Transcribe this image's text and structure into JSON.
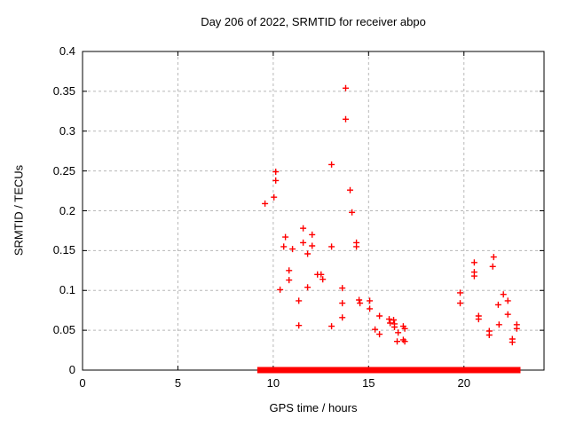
{
  "chart_data": {
    "type": "scatter",
    "title": "Day 206 of 2022, SRMTID for receiver abpo",
    "xlabel": "GPS time / hours",
    "ylabel": "SRMTID / TECUs",
    "xlim": [
      0,
      24.2
    ],
    "ylim": [
      0,
      0.4
    ],
    "grid": true,
    "legend": "none",
    "marker": "plus",
    "colors": {
      "marker": "#ff0000",
      "grid": "#b8b8b8",
      "axis": "#000000",
      "text": "#000000",
      "background": "#ffffff"
    },
    "xticks": [
      {
        "pos": 0,
        "label": "0"
      },
      {
        "pos": 5,
        "label": "5"
      },
      {
        "pos": 10,
        "label": "10"
      },
      {
        "pos": 15,
        "label": "15"
      },
      {
        "pos": 20,
        "label": "20"
      }
    ],
    "yticks": [
      {
        "pos": 0,
        "label": "0"
      },
      {
        "pos": 0.05,
        "label": "0.05"
      },
      {
        "pos": 0.1,
        "label": "0.1"
      },
      {
        "pos": 0.15,
        "label": "0.15"
      },
      {
        "pos": 0.2,
        "label": "0.2"
      },
      {
        "pos": 0.25,
        "label": "0.25"
      },
      {
        "pos": 0.3,
        "label": "0.3"
      },
      {
        "pos": 0.35,
        "label": "0.35"
      },
      {
        "pos": 0.4,
        "label": "0.4"
      }
    ],
    "series": [
      {
        "name": "srmtid-points",
        "points": [
          [
            9.57,
            0.209
          ],
          [
            10.04,
            0.217
          ],
          [
            10.13,
            0.249
          ],
          [
            10.13,
            0.238
          ],
          [
            10.36,
            0.101
          ],
          [
            10.55,
            0.155
          ],
          [
            10.64,
            0.167
          ],
          [
            10.83,
            0.125
          ],
          [
            10.83,
            0.113
          ],
          [
            11.01,
            0.152
          ],
          [
            11.34,
            0.087
          ],
          [
            11.34,
            0.056
          ],
          [
            11.57,
            0.178
          ],
          [
            11.57,
            0.16
          ],
          [
            11.8,
            0.146
          ],
          [
            11.8,
            0.104
          ],
          [
            12.04,
            0.17
          ],
          [
            12.04,
            0.156
          ],
          [
            12.32,
            0.12
          ],
          [
            12.51,
            0.12
          ],
          [
            12.6,
            0.114
          ],
          [
            13.06,
            0.258
          ],
          [
            13.06,
            0.155
          ],
          [
            13.06,
            0.055
          ],
          [
            13.62,
            0.103
          ],
          [
            13.62,
            0.084
          ],
          [
            13.62,
            0.066
          ],
          [
            13.8,
            0.354
          ],
          [
            13.8,
            0.315
          ],
          [
            14.03,
            0.226
          ],
          [
            14.13,
            0.198
          ],
          [
            14.36,
            0.16
          ],
          [
            14.36,
            0.155
          ],
          [
            14.5,
            0.088
          ],
          [
            14.55,
            0.084
          ],
          [
            15.06,
            0.087
          ],
          [
            15.06,
            0.077
          ],
          [
            15.34,
            0.051
          ],
          [
            15.57,
            0.068
          ],
          [
            15.57,
            0.045
          ],
          [
            16.08,
            0.064
          ],
          [
            16.13,
            0.059
          ],
          [
            16.31,
            0.063
          ],
          [
            16.36,
            0.058
          ],
          [
            16.36,
            0.054
          ],
          [
            16.5,
            0.036
          ],
          [
            16.55,
            0.047
          ],
          [
            16.82,
            0.055
          ],
          [
            16.82,
            0.038
          ],
          [
            16.9,
            0.052
          ],
          [
            16.9,
            0.036
          ],
          [
            19.8,
            0.097
          ],
          [
            19.8,
            0.084
          ],
          [
            20.54,
            0.135
          ],
          [
            20.54,
            0.123
          ],
          [
            20.54,
            0.118
          ],
          [
            20.77,
            0.068
          ],
          [
            20.77,
            0.064
          ],
          [
            21.33,
            0.049
          ],
          [
            21.33,
            0.044
          ],
          [
            21.51,
            0.13
          ],
          [
            21.56,
            0.142
          ],
          [
            21.8,
            0.082
          ],
          [
            21.84,
            0.057
          ],
          [
            22.07,
            0.095
          ],
          [
            22.3,
            0.087
          ],
          [
            22.3,
            0.07
          ],
          [
            22.54,
            0.039
          ],
          [
            22.54,
            0.035
          ],
          [
            22.77,
            0.057
          ],
          [
            22.77,
            0.052
          ]
        ]
      },
      {
        "name": "zero-value-band",
        "value": 0,
        "segments": [
          [
            9.28,
            9.45
          ],
          [
            9.55,
            9.7
          ],
          [
            9.85,
            10.28
          ],
          [
            10.33,
            10.55
          ],
          [
            10.6,
            10.9
          ],
          [
            10.95,
            11.2
          ],
          [
            11.25,
            11.55
          ],
          [
            11.6,
            11.9
          ],
          [
            11.95,
            12.3
          ],
          [
            12.35,
            12.9
          ],
          [
            12.95,
            13.35
          ],
          [
            13.45,
            13.85
          ],
          [
            13.9,
            14.2
          ],
          [
            14.25,
            14.6
          ],
          [
            14.65,
            15.0
          ],
          [
            15.05,
            15.35
          ],
          [
            15.45,
            15.9
          ],
          [
            15.95,
            16.25
          ],
          [
            16.3,
            16.7
          ],
          [
            16.75,
            17.1
          ],
          [
            17.15,
            17.55
          ],
          [
            17.6,
            17.95
          ],
          [
            18.0,
            18.4
          ],
          [
            18.45,
            18.8
          ],
          [
            18.85,
            19.15
          ],
          [
            19.2,
            19.55
          ],
          [
            19.65,
            20.05
          ],
          [
            20.1,
            20.45
          ],
          [
            20.55,
            20.9
          ],
          [
            21.0,
            21.4
          ],
          [
            21.5,
            21.85
          ],
          [
            21.95,
            22.3
          ],
          [
            22.4,
            22.65
          ],
          [
            22.7,
            22.85
          ]
        ]
      }
    ]
  }
}
